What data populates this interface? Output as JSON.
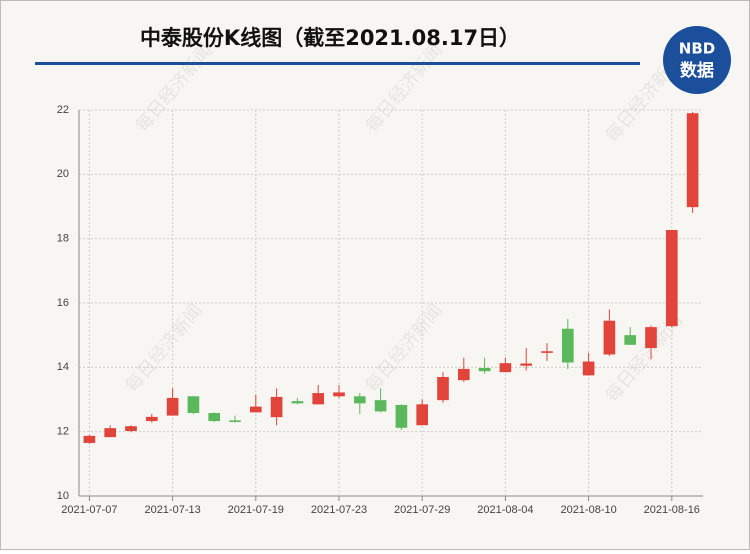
{
  "logo": {
    "brand": "NBD",
    "label": "数据"
  },
  "watermark": "每日经济新闻",
  "chart_data": {
    "type": "candlestick",
    "title": "中泰股份K线图（截至2021.08.17日）",
    "categories": [
      "2021-07-07",
      null,
      null,
      null,
      "2021-07-13",
      null,
      null,
      null,
      "2021-07-19",
      null,
      null,
      null,
      "2021-07-23",
      null,
      null,
      null,
      "2021-07-29",
      null,
      null,
      null,
      "2021-08-04",
      null,
      null,
      null,
      "2021-08-10",
      null,
      null,
      null,
      "2021-08-16",
      null
    ],
    "open": [
      11.65,
      11.83,
      12.02,
      12.33,
      12.5,
      13.1,
      12.58,
      12.35,
      12.6,
      12.45,
      12.95,
      12.85,
      13.1,
      13.1,
      12.98,
      12.83,
      12.2,
      12.98,
      13.6,
      13.98,
      13.85,
      14.05,
      14.45,
      15.2,
      13.75,
      14.4,
      15.0,
      14.6,
      15.28,
      18.98
    ],
    "high": [
      11.9,
      12.2,
      12.2,
      12.55,
      13.35,
      13.1,
      12.6,
      12.5,
      13.15,
      13.35,
      13.05,
      13.45,
      13.45,
      13.2,
      13.35,
      12.85,
      13.0,
      13.85,
      14.3,
      14.3,
      14.3,
      14.6,
      14.75,
      15.5,
      14.45,
      15.8,
      15.25,
      15.3,
      18.27,
      21.94
    ],
    "low": [
      11.62,
      11.83,
      11.98,
      12.28,
      12.5,
      12.55,
      12.3,
      12.28,
      12.6,
      12.2,
      12.85,
      12.85,
      13.05,
      12.55,
      12.6,
      12.05,
      12.2,
      12.9,
      13.55,
      13.8,
      13.85,
      13.9,
      14.2,
      13.95,
      13.75,
      14.35,
      14.7,
      14.25,
      15.25,
      18.8
    ],
    "close": [
      11.87,
      12.11,
      12.17,
      12.46,
      13.05,
      12.58,
      12.33,
      12.3,
      12.78,
      13.08,
      12.88,
      13.2,
      13.22,
      12.88,
      12.63,
      12.12,
      12.85,
      13.7,
      13.95,
      13.88,
      14.13,
      14.12,
      14.5,
      14.15,
      14.18,
      15.45,
      14.7,
      15.25,
      18.27,
      21.9
    ],
    "up_color": "#e0443b",
    "down_color": "#5cb85c",
    "ylim": [
      10,
      22
    ],
    "yticks": [
      10,
      12,
      14,
      16,
      18,
      20,
      22
    ],
    "grid": true
  }
}
